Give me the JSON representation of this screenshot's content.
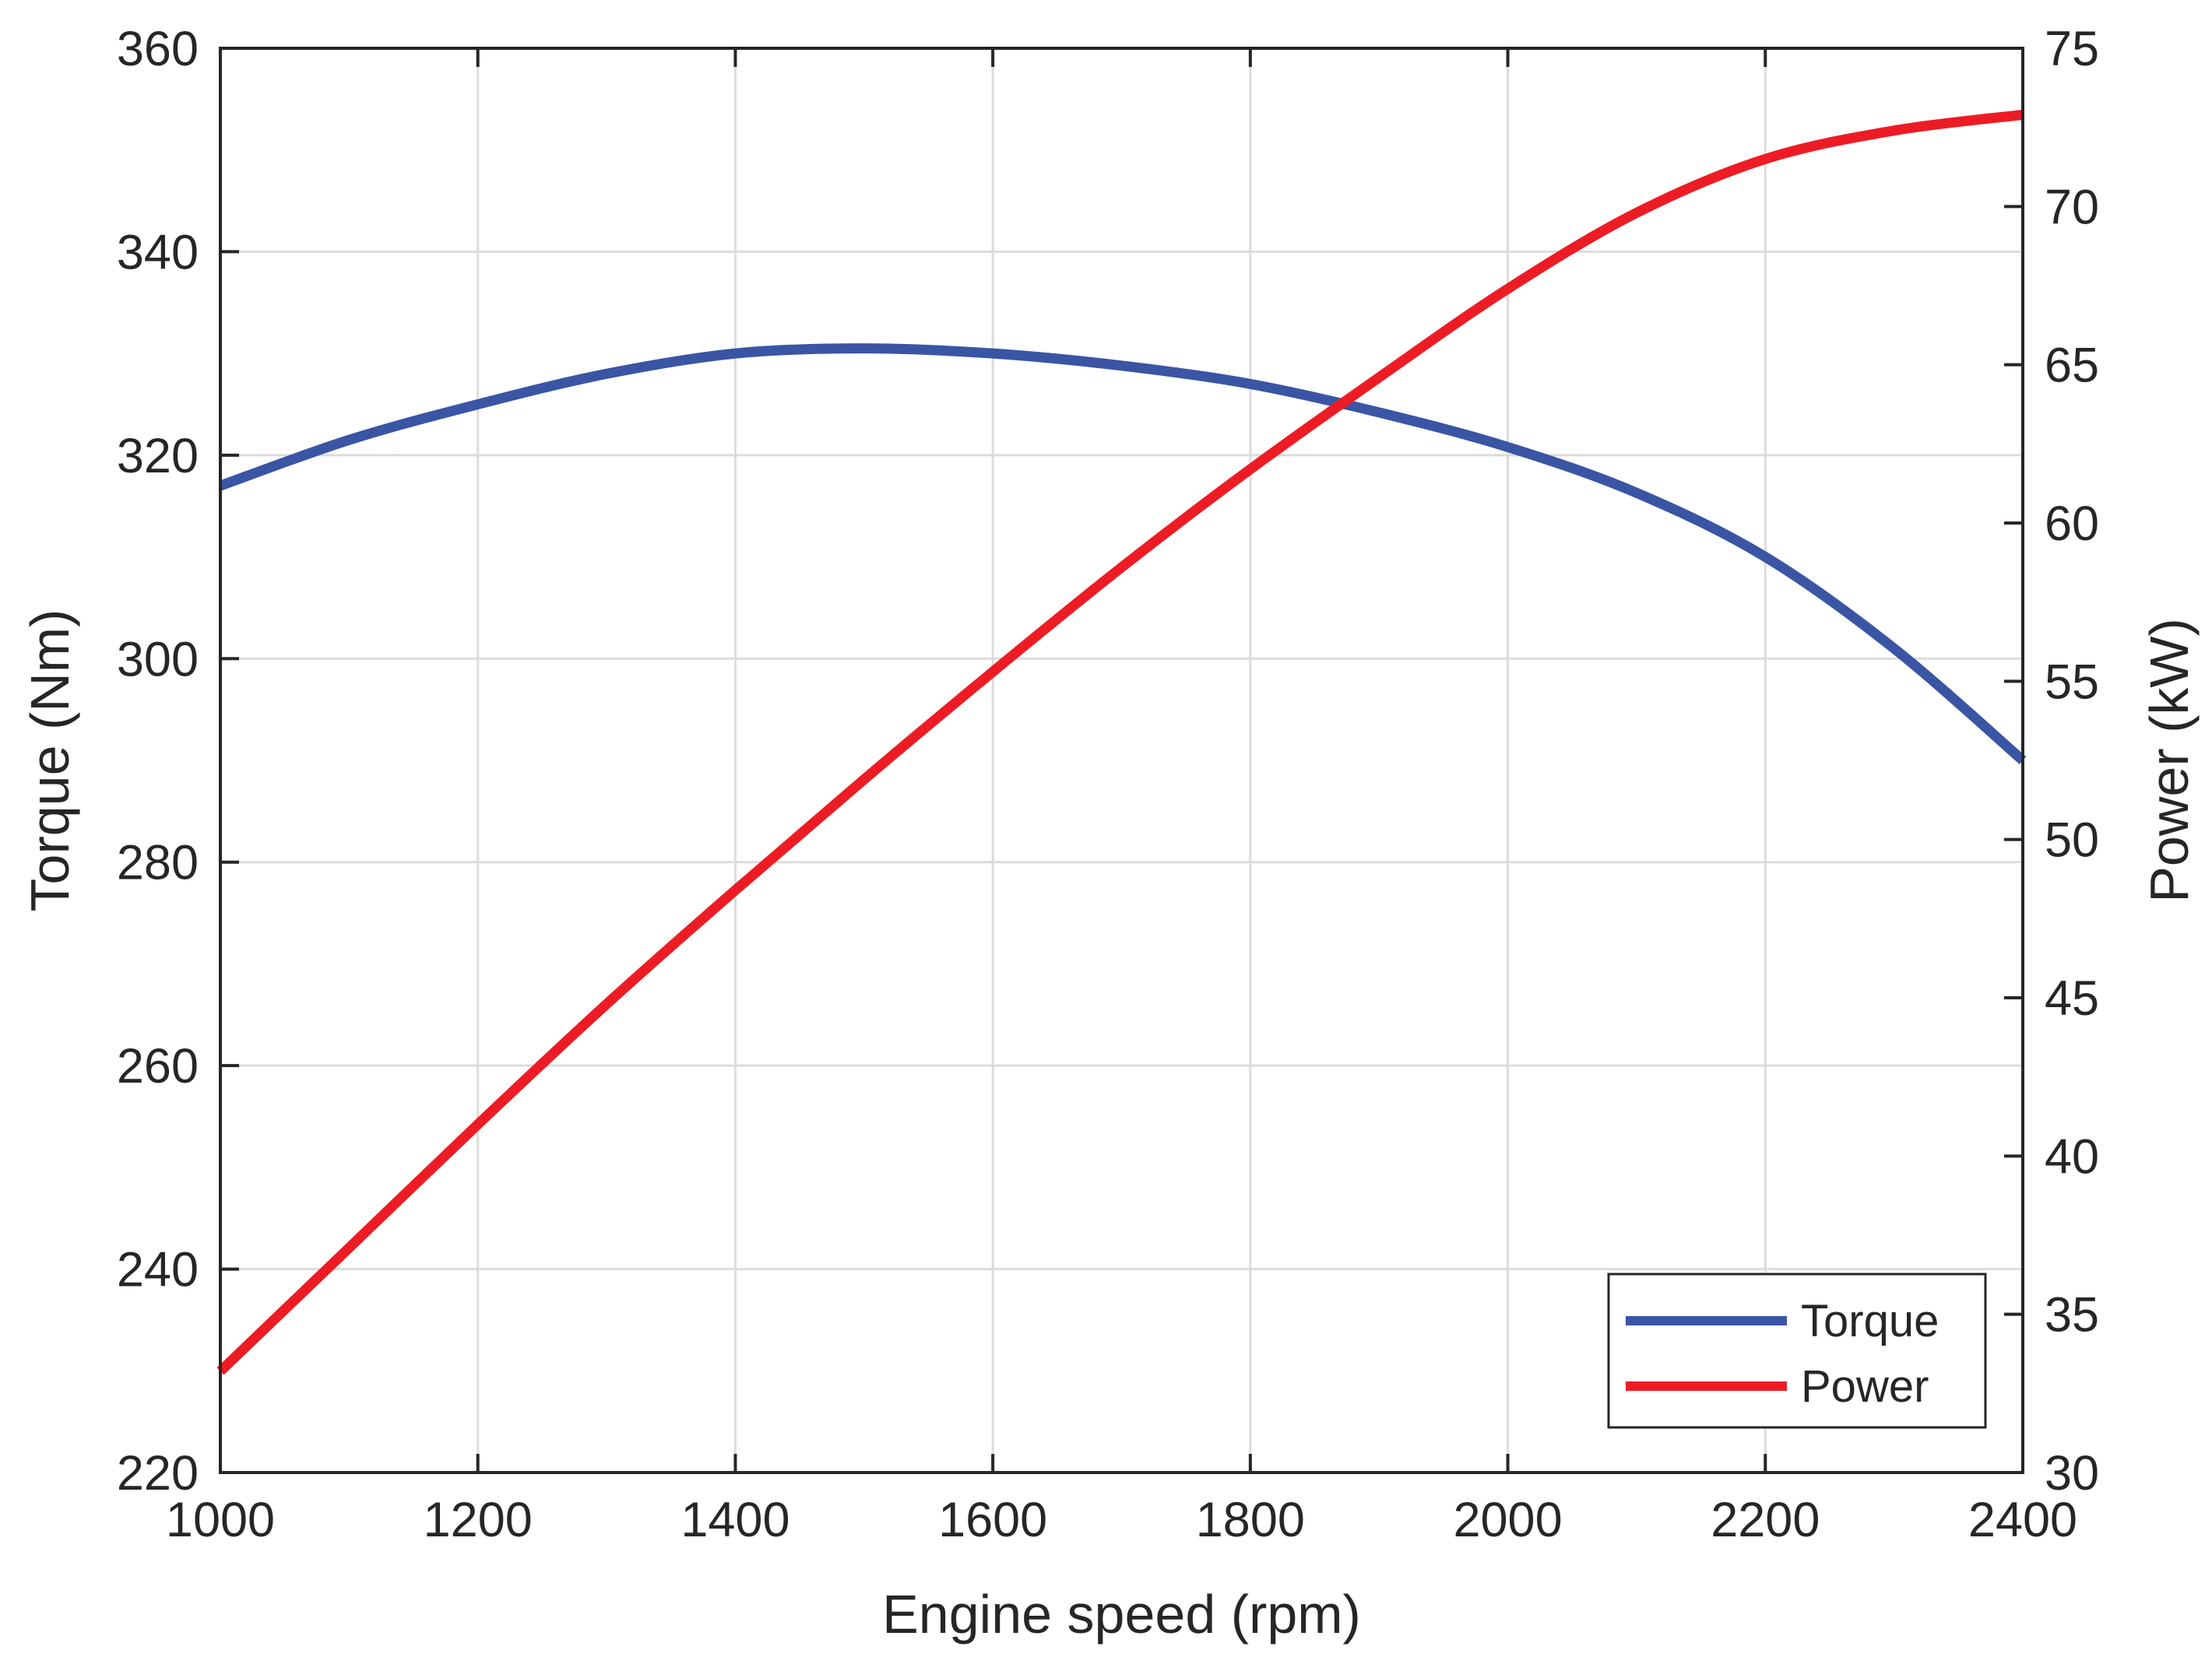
{
  "chart_data": {
    "type": "line",
    "title": "",
    "xlabel": "Engine speed (rpm)",
    "ylabel": "Torque (Nm)",
    "y2label": "Power (kW)",
    "xlim": [
      1000,
      2400
    ],
    "ylim": [
      220,
      360
    ],
    "y2lim": [
      30,
      75
    ],
    "xticks": [
      1000,
      1200,
      1400,
      1600,
      1800,
      2000,
      2200,
      2400
    ],
    "yticks": [
      220,
      240,
      260,
      280,
      300,
      320,
      340,
      360
    ],
    "y2ticks": [
      30,
      35,
      40,
      45,
      50,
      55,
      60,
      65,
      70,
      75
    ],
    "grid": true,
    "legend_position": "bottom-right",
    "x": [
      1000,
      1100,
      1200,
      1300,
      1400,
      1500,
      1600,
      1700,
      1800,
      1900,
      2000,
      2100,
      2200,
      2300,
      2400
    ],
    "series": [
      {
        "name": "Torque",
        "axis": "left",
        "color": "#3a55a4",
        "values": [
          317,
          321.5,
          325,
          328,
          330,
          330.5,
          330,
          328.8,
          327,
          324.2,
          320.8,
          316.3,
          310,
          301,
          290
        ]
      },
      {
        "name": "Power",
        "axis": "right",
        "color": "#ed1c24",
        "values": [
          33.2,
          37.1,
          41,
          44.8,
          48.4,
          51.9,
          55.3,
          58.6,
          61.7,
          64.6,
          67.4,
          69.8,
          71.5,
          72.4,
          72.9
        ]
      }
    ]
  }
}
